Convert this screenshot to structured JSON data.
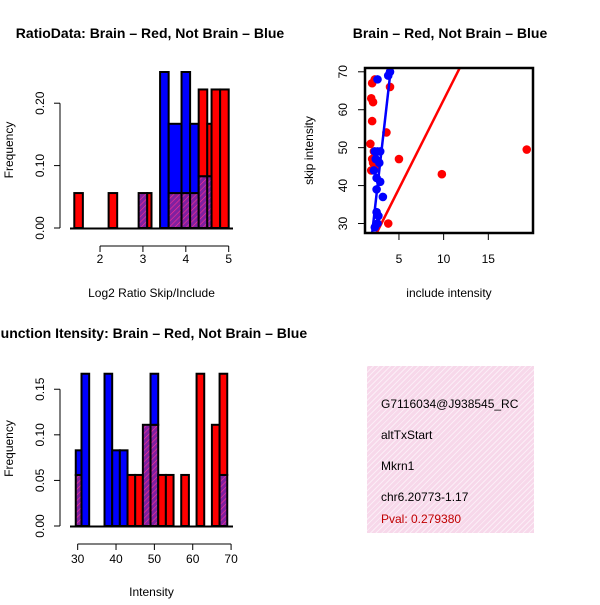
{
  "colors": {
    "red": "#ff0000",
    "blue": "#0000ff",
    "purple": "#8020a0",
    "infobg": "#f7d8ea",
    "pval": "#c00000"
  },
  "chart_data": [
    {
      "id": "ratio",
      "type": "bar",
      "title": "RatioData: Brain – Red, Not Brain – Blue",
      "xlabel": "Log2 Ratio Skip/Include",
      "ylabel": "Frequency",
      "xlim": [
        1.3,
        5.1
      ],
      "ylim": [
        0,
        0.25
      ],
      "xticks": [
        2,
        3,
        4,
        5
      ],
      "yticks": [
        0.0,
        0.1,
        0.2
      ],
      "yticklabels": [
        "0.00",
        "0.10",
        "0.20"
      ],
      "bin_edges": [
        1.4,
        1.6,
        2.2,
        2.4,
        2.9,
        3.1,
        3.2,
        3.4,
        3.6,
        3.9,
        4.1,
        4.3,
        4.5,
        4.6,
        4.8,
        5.0
      ],
      "series": [
        {
          "name": "Brain",
          "color": "red",
          "values": [
            0.056,
            0,
            0.056,
            0,
            0.056,
            0.056,
            0,
            0,
            0.056,
            0.056,
            0.056,
            0.222,
            0.167,
            0.222,
            0.222
          ]
        },
        {
          "name": "Not Brain",
          "color": "blue",
          "values": [
            0,
            0,
            0,
            0,
            0.056,
            0,
            0,
            0.25,
            0.167,
            0.25,
            0.167,
            0.083,
            0.083,
            0,
            0
          ]
        }
      ]
    },
    {
      "id": "scatter",
      "type": "scatter",
      "title": "Brain – Red, Not Brain – Blue",
      "xlabel": "include intensity",
      "ylabel": "skip intensity",
      "xlim": [
        1.2,
        20
      ],
      "ylim": [
        27.5,
        71
      ],
      "xticks": [
        5,
        10,
        15
      ],
      "yticks": [
        30,
        40,
        50,
        60,
        70
      ],
      "series": [
        {
          "name": "Brain",
          "color": "red",
          "points": [
            [
              2.0,
              67
            ],
            [
              2.3,
              68
            ],
            [
              1.9,
              63
            ],
            [
              2.1,
              62
            ],
            [
              2.0,
              57
            ],
            [
              1.8,
              51
            ],
            [
              2.2,
              49
            ],
            [
              2.0,
              47
            ],
            [
              2.1,
              46
            ],
            [
              2.4,
              45
            ],
            [
              1.9,
              44
            ],
            [
              3.6,
              54
            ],
            [
              3.8,
              30
            ],
            [
              4.0,
              66
            ],
            [
              5.0,
              47
            ],
            [
              9.8,
              43
            ],
            [
              19.3,
              49.5
            ]
          ],
          "fit": {
            "x1": 2.5,
            "y1": 27.5,
            "x2": 11.8,
            "y2": 71
          }
        },
        {
          "name": "Not Brain",
          "color": "blue",
          "points": [
            [
              2.6,
              68
            ],
            [
              3.8,
              69
            ],
            [
              4.0,
              70
            ],
            [
              2.3,
              49
            ],
            [
              2.6,
              49
            ],
            [
              2.9,
              49
            ],
            [
              2.4,
              47
            ],
            [
              2.8,
              46
            ],
            [
              2.2,
              44
            ],
            [
              2.5,
              42
            ],
            [
              2.5,
              39
            ],
            [
              2.9,
              41
            ],
            [
              3.2,
              37
            ],
            [
              2.5,
              33
            ],
            [
              2.7,
              32
            ],
            [
              2.3,
              29
            ],
            [
              2.6,
              30
            ]
          ],
          "fit": {
            "x1": 2.0,
            "y1": 27.5,
            "x2": 4.1,
            "y2": 71
          }
        }
      ]
    },
    {
      "id": "intensity",
      "type": "bar",
      "title": "Junction Itensity: Brain – Red, Not Brain – Blue",
      "xlabel": "Intensity",
      "ylabel": "Frequency",
      "xlim": [
        28,
        70.5
      ],
      "ylim": [
        0,
        0.17
      ],
      "xticks": [
        30,
        40,
        50,
        60,
        70
      ],
      "yticks": [
        0.0,
        0.05,
        0.1,
        0.15
      ],
      "yticklabels": [
        "0.00",
        "0.05",
        "0.10",
        "0.15"
      ],
      "bin_edges": [
        29.5,
        31,
        33,
        35,
        37,
        39,
        41,
        43,
        45,
        47,
        49,
        51,
        53,
        55,
        57,
        59,
        61,
        63,
        65,
        67,
        69
      ],
      "series": [
        {
          "name": "Brain",
          "color": "red",
          "values": [
            0.056,
            0,
            0,
            0,
            0,
            0,
            0,
            0.056,
            0.056,
            0.111,
            0.111,
            0.056,
            0.056,
            0,
            0.056,
            0,
            0.167,
            0,
            0.111,
            0.167
          ]
        },
        {
          "name": "Not Brain",
          "color": "blue",
          "values": [
            0.083,
            0.167,
            0,
            0,
            0.167,
            0.083,
            0.083,
            0,
            0,
            0.111,
            0.167,
            0,
            0,
            0,
            0,
            0,
            0,
            0,
            0,
            0.056
          ]
        }
      ]
    }
  ],
  "info": {
    "id": "G7116034@J938545_RC",
    "event": "altTxStart",
    "gene": "Mkrn1",
    "location": "chr6.20773-1.17",
    "pval": "Pval: 0.279380"
  }
}
